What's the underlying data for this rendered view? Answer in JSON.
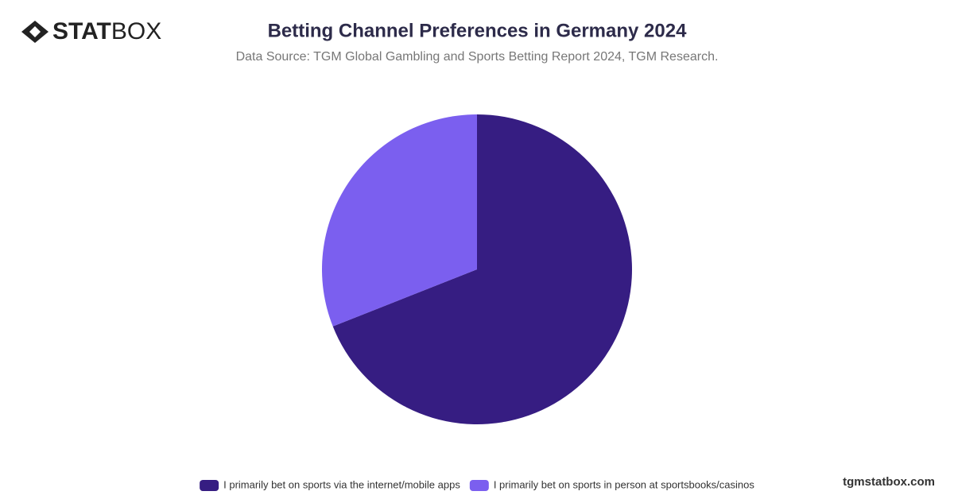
{
  "brand": {
    "bold": "STAT",
    "light": "BOX"
  },
  "footer": "tgmstatbox.com",
  "chart_data": {
    "type": "pie",
    "title": "Betting Channel Preferences in Germany 2024",
    "subtitle": "Data Source: TGM Global Gambling and Sports Betting Report 2024, TGM Research.",
    "categories": [
      "I primarily bet on sports via the internet/mobile apps",
      "I primarily bet on sports in person at sportsbooks/casinos"
    ],
    "values": [
      69,
      31
    ],
    "colors": [
      "#361d82",
      "#7b5fef"
    ],
    "legend": "bottom"
  }
}
